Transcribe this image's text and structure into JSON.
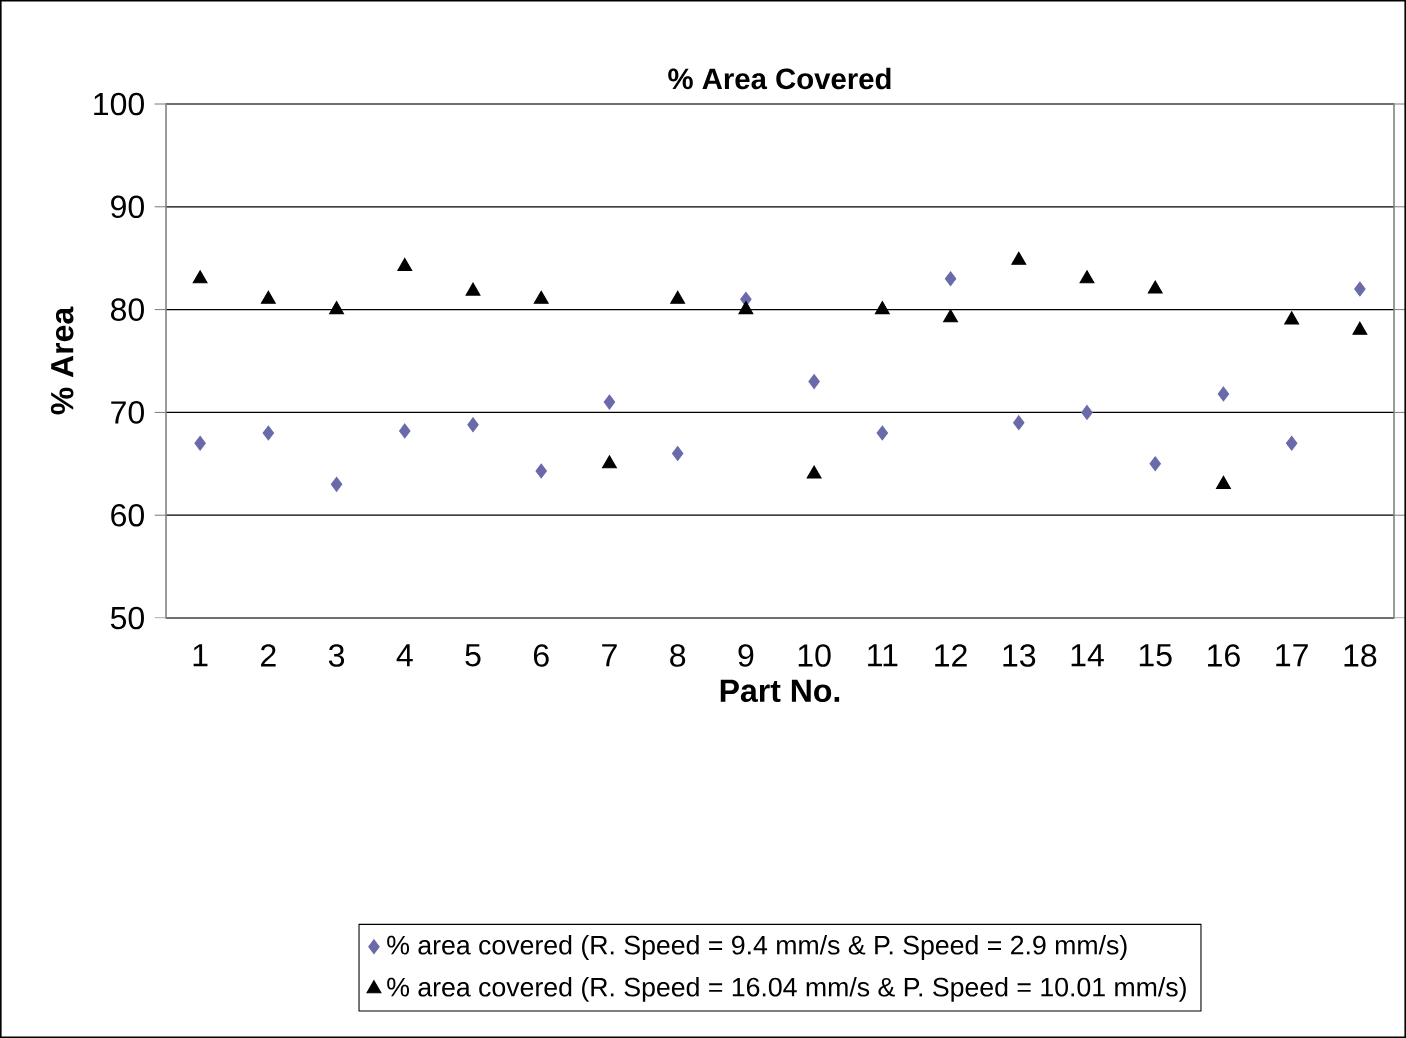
{
  "chart_data": {
    "type": "scatter",
    "title": "% Area Covered",
    "xlabel": "Part No.",
    "ylabel": "% Area",
    "categories": [
      "1",
      "2",
      "3",
      "4",
      "5",
      "6",
      "7",
      "8",
      "9",
      "10",
      "11",
      "12",
      "13",
      "14",
      "15",
      "16",
      "17",
      "18"
    ],
    "series": [
      {
        "name": "% area covered (R. Speed = 9.4 mm/s & P. Speed = 2.9 mm/s)",
        "color": "#6a6aaa",
        "marker": "diamond",
        "values": [
          67,
          68,
          63,
          68.2,
          68.8,
          64.3,
          71,
          66,
          81,
          73,
          68,
          83,
          69,
          70,
          65,
          71.8,
          67,
          82
        ]
      },
      {
        "name": "% area covered (R. Speed = 16.04 mm/s & P. Speed = 10.01 mm/s)",
        "color": "#000000",
        "marker": "triangle",
        "values": [
          83,
          81,
          80,
          84.2,
          81.8,
          81,
          65,
          81,
          80,
          64,
          80,
          79.2,
          84.8,
          83,
          82,
          63,
          79,
          78
        ]
      }
    ],
    "ylim": [
      50,
      100
    ],
    "yticks": [
      50,
      60,
      70,
      80,
      90,
      100
    ],
    "grid": "y",
    "legend": "bottom"
  }
}
